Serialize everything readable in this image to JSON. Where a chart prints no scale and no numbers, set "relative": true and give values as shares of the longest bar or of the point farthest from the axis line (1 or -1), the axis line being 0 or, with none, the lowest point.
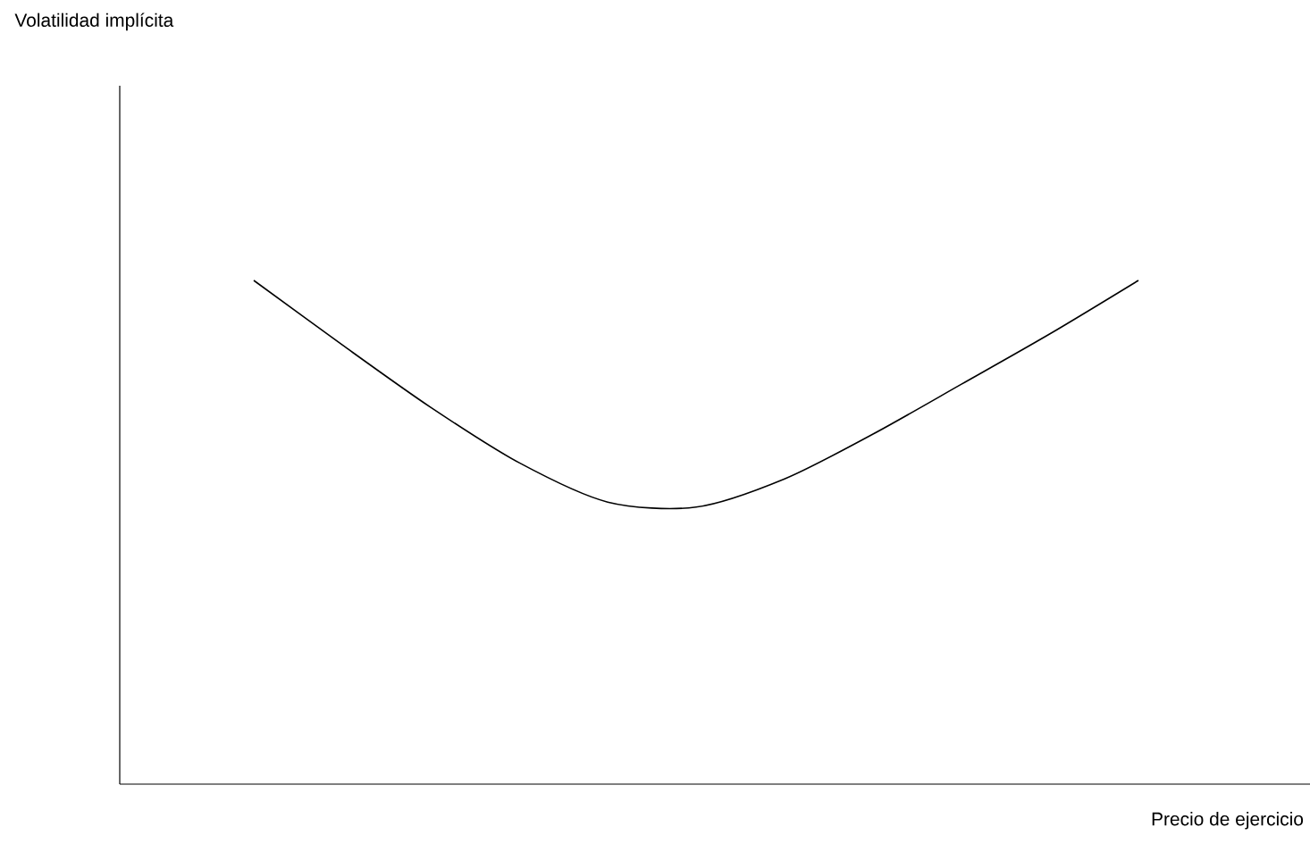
{
  "chart_data": {
    "type": "line",
    "relative": true,
    "xlabel": "Precio de ejercicio",
    "annotations": [
      "Volatilidad implícita"
    ],
    "categories": [
      null,
      null,
      null,
      null,
      null,
      null,
      null,
      null,
      null,
      null,
      null
    ],
    "values": [
      1,
      0.872,
      0.748,
      0.638,
      0.56,
      0.55,
      0.606,
      0.695,
      0.794,
      0.894,
      1
    ],
    "color": "#000000",
    "tick_labels": false
  }
}
